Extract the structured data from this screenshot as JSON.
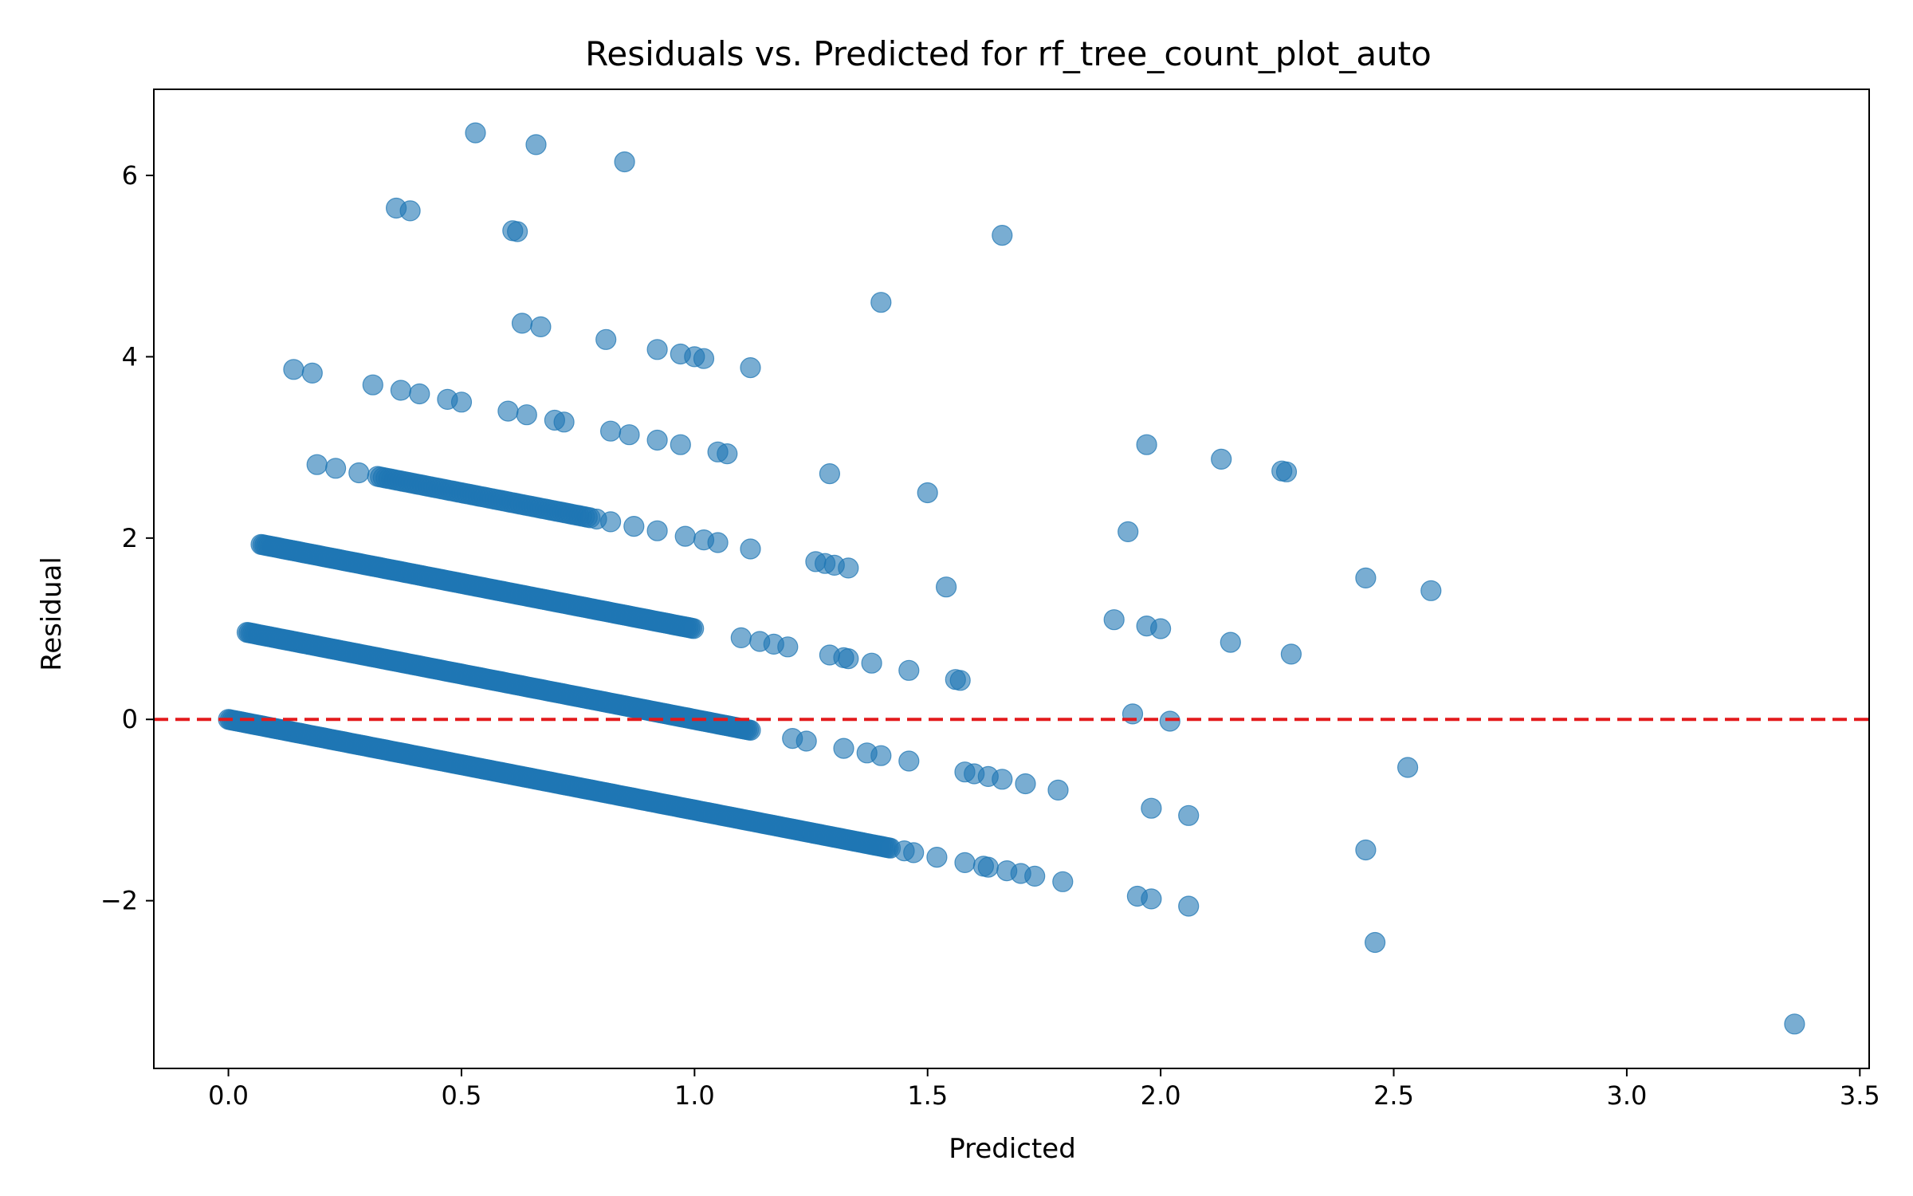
{
  "chart_data": {
    "type": "scatter",
    "title": "Residuals vs. Predicted for rf_tree_count_plot_auto",
    "xlabel": "Predicted",
    "ylabel": "Residual",
    "xlim": [
      -0.16,
      3.52
    ],
    "ylim": [
      -3.85,
      6.95
    ],
    "x_ticks": [
      0.0,
      0.5,
      1.0,
      1.5,
      2.0,
      2.5,
      3.0,
      3.5
    ],
    "x_tick_labels": [
      "0.0",
      "0.5",
      "1.0",
      "1.5",
      "2.0",
      "2.5",
      "3.0",
      "3.5"
    ],
    "y_ticks": [
      -2,
      0,
      2,
      4,
      6
    ],
    "y_tick_labels": [
      "−2",
      "0",
      "2",
      "4",
      "6"
    ],
    "grid": false,
    "reference_line": {
      "y": 0,
      "style": "dashed",
      "color": "#e31a1c"
    },
    "point_color": "#1f77b4",
    "point_alpha": 0.6,
    "bands": [
      {
        "actual": 0,
        "x_from": 0.0,
        "x_to": 1.42,
        "step": 0.004
      },
      {
        "actual": 1,
        "x_from": 0.04,
        "x_to": 1.12,
        "step": 0.004
      },
      {
        "actual": 2,
        "x_from": 0.07,
        "x_to": 1.0,
        "step": 0.004
      },
      {
        "actual": 3,
        "x_from": 0.32,
        "x_to": 0.78,
        "step": 0.006
      }
    ],
    "points": [
      [
        1.45,
        -1.45
      ],
      [
        1.47,
        -1.47
      ],
      [
        1.52,
        -1.52
      ],
      [
        1.58,
        -1.58
      ],
      [
        1.62,
        -1.62
      ],
      [
        1.63,
        -1.63
      ],
      [
        1.67,
        -1.67
      ],
      [
        1.7,
        -1.7
      ],
      [
        1.73,
        -1.73
      ],
      [
        1.79,
        -1.79
      ],
      [
        1.95,
        -1.95
      ],
      [
        1.98,
        -1.98
      ],
      [
        2.06,
        -2.06
      ],
      [
        2.46,
        -2.46
      ],
      [
        3.36,
        -3.36
      ],
      [
        1.98,
        -0.98
      ],
      [
        2.06,
        -1.06
      ],
      [
        2.44,
        -1.44
      ],
      [
        1.21,
        -0.21
      ],
      [
        1.24,
        -0.24
      ],
      [
        1.32,
        -0.32
      ],
      [
        1.37,
        -0.37
      ],
      [
        1.4,
        -0.4
      ],
      [
        1.46,
        -0.46
      ],
      [
        1.58,
        -0.58
      ],
      [
        1.6,
        -0.6
      ],
      [
        1.63,
        -0.63
      ],
      [
        1.66,
        -0.66
      ],
      [
        1.71,
        -0.71
      ],
      [
        1.78,
        -0.78
      ],
      [
        2.53,
        -0.53
      ],
      [
        1.94,
        0.06
      ],
      [
        2.02,
        -0.02
      ],
      [
        1.1,
        0.9
      ],
      [
        1.14,
        0.86
      ],
      [
        1.17,
        0.83
      ],
      [
        1.2,
        0.8
      ],
      [
        1.29,
        0.71
      ],
      [
        1.32,
        0.68
      ],
      [
        1.33,
        0.67
      ],
      [
        1.38,
        0.62
      ],
      [
        1.46,
        0.54
      ],
      [
        1.56,
        0.44
      ],
      [
        1.57,
        0.43
      ],
      [
        1.9,
        1.1
      ],
      [
        1.97,
        1.03
      ],
      [
        2.0,
        1.0
      ],
      [
        2.15,
        0.85
      ],
      [
        2.28,
        0.72
      ],
      [
        2.44,
        1.56
      ],
      [
        2.58,
        1.42
      ],
      [
        1.26,
        1.74
      ],
      [
        1.28,
        1.72
      ],
      [
        1.3,
        1.7
      ],
      [
        1.33,
        1.67
      ],
      [
        1.54,
        1.46
      ],
      [
        1.93,
        2.07
      ],
      [
        0.79,
        2.21
      ],
      [
        0.82,
        2.18
      ],
      [
        0.87,
        2.13
      ],
      [
        0.92,
        2.08
      ],
      [
        0.98,
        2.02
      ],
      [
        1.02,
        1.98
      ],
      [
        1.05,
        1.95
      ],
      [
        1.12,
        1.88
      ],
      [
        1.29,
        2.71
      ],
      [
        1.5,
        2.5
      ],
      [
        1.97,
        3.03
      ],
      [
        2.13,
        2.87
      ],
      [
        2.26,
        2.74
      ],
      [
        2.27,
        2.73
      ],
      [
        0.19,
        2.81
      ],
      [
        0.23,
        2.77
      ],
      [
        0.28,
        2.72
      ],
      [
        0.82,
        3.18
      ],
      [
        0.86,
        3.14
      ],
      [
        0.92,
        3.08
      ],
      [
        0.97,
        3.03
      ],
      [
        1.05,
        2.95
      ],
      [
        1.07,
        2.93
      ],
      [
        0.14,
        3.86
      ],
      [
        0.18,
        3.82
      ],
      [
        0.31,
        3.69
      ],
      [
        0.37,
        3.63
      ],
      [
        0.41,
        3.59
      ],
      [
        0.47,
        3.53
      ],
      [
        0.5,
        3.5
      ],
      [
        0.6,
        3.4
      ],
      [
        0.64,
        3.36
      ],
      [
        0.7,
        3.3
      ],
      [
        0.72,
        3.28
      ],
      [
        0.81,
        4.19
      ],
      [
        0.92,
        4.08
      ],
      [
        0.97,
        4.03
      ],
      [
        1.0,
        4.0
      ],
      [
        1.02,
        3.98
      ],
      [
        1.12,
        3.88
      ],
      [
        0.63,
        4.37
      ],
      [
        0.67,
        4.33
      ],
      [
        1.4,
        4.6
      ],
      [
        0.36,
        5.64
      ],
      [
        0.39,
        5.61
      ],
      [
        0.61,
        5.39
      ],
      [
        0.62,
        5.38
      ],
      [
        1.66,
        5.34
      ],
      [
        0.53,
        6.47
      ],
      [
        0.66,
        6.34
      ],
      [
        0.85,
        6.15
      ]
    ]
  }
}
